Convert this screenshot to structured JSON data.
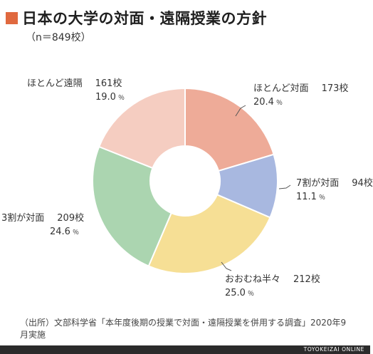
{
  "title": "日本の大学の対面・遠隔授業の方針",
  "subtitle": "（n＝849校）",
  "accent_color": "#e0693f",
  "chart_data": {
    "type": "pie",
    "donut": true,
    "categories": [
      "ほとんど対面",
      "7割が対面",
      "おおむね半々",
      "3割が対面",
      "ほとんど遠隔"
    ],
    "counts": [
      173,
      94,
      212,
      209,
      161
    ],
    "count_labels": [
      "173校",
      "94校",
      "212校",
      "209校",
      "161校"
    ],
    "values": [
      20.4,
      11.1,
      25.0,
      24.6,
      19.0
    ],
    "value_labels": [
      "20.4",
      "11.1",
      "25.0",
      "24.6",
      "19.0"
    ],
    "unit": "％",
    "colors": [
      "#eeab98",
      "#a8b8e0",
      "#f6df95",
      "#abd5b0",
      "#f5cdc1"
    ]
  },
  "source": "（出所）文部科学省「本年度後期の授業で対面・遠隔授業を併用する調査」2020年9月実施",
  "footer": "TOYOKEIZAI ONLINE"
}
